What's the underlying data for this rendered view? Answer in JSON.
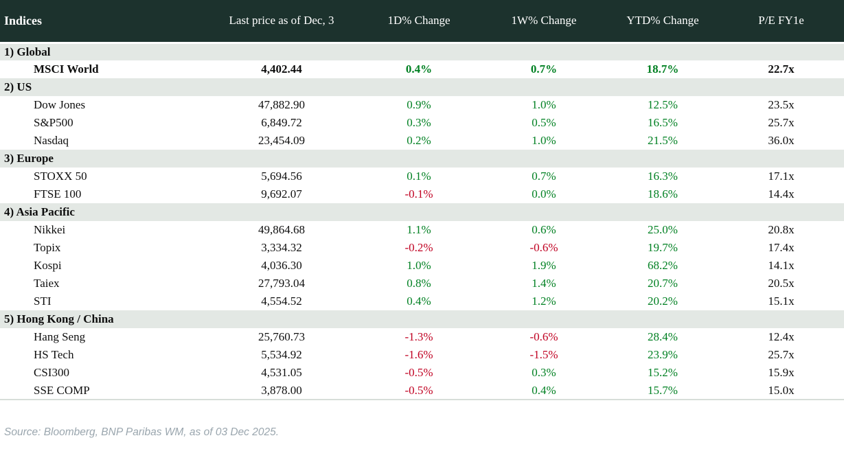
{
  "chart_data": {
    "type": "table",
    "title": "Indices",
    "columns": [
      "Indices",
      "Last price as of Dec, 3",
      "1D% Change",
      "1W% Change",
      "YTD% Change",
      "P/E FY1e"
    ],
    "sections": [
      {
        "label": "1) Global",
        "rows": [
          {
            "name": "MSCI World",
            "last_price": "4,402.44",
            "change_1d": "0.4%",
            "change_1w": "0.7%",
            "change_ytd": "18.7%",
            "pe_fy1e": "22.7x",
            "emphasis": true
          }
        ]
      },
      {
        "label": "2) US",
        "rows": [
          {
            "name": "Dow Jones",
            "last_price": "47,882.90",
            "change_1d": "0.9%",
            "change_1w": "1.0%",
            "change_ytd": "12.5%",
            "pe_fy1e": "23.5x"
          },
          {
            "name": "S&P500",
            "last_price": "6,849.72",
            "change_1d": "0.3%",
            "change_1w": "0.5%",
            "change_ytd": "16.5%",
            "pe_fy1e": "25.7x"
          },
          {
            "name": "Nasdaq",
            "last_price": "23,454.09",
            "change_1d": "0.2%",
            "change_1w": "1.0%",
            "change_ytd": "21.5%",
            "pe_fy1e": "36.0x"
          }
        ]
      },
      {
        "label": "3) Europe",
        "rows": [
          {
            "name": "STOXX 50",
            "last_price": "5,694.56",
            "change_1d": "0.1%",
            "change_1w": "0.7%",
            "change_ytd": "16.3%",
            "pe_fy1e": "17.1x"
          },
          {
            "name": "FTSE 100",
            "last_price": "9,692.07",
            "change_1d": "-0.1%",
            "change_1w": "0.0%",
            "change_ytd": "18.6%",
            "pe_fy1e": "14.4x"
          }
        ]
      },
      {
        "label": "4) Asia Pacific",
        "rows": [
          {
            "name": "Nikkei",
            "last_price": "49,864.68",
            "change_1d": "1.1%",
            "change_1w": "0.6%",
            "change_ytd": "25.0%",
            "pe_fy1e": "20.8x"
          },
          {
            "name": "Topix",
            "last_price": "3,334.32",
            "change_1d": "-0.2%",
            "change_1w": "-0.6%",
            "change_ytd": "19.7%",
            "pe_fy1e": "17.4x"
          },
          {
            "name": "Kospi",
            "last_price": "4,036.30",
            "change_1d": "1.0%",
            "change_1w": "1.9%",
            "change_ytd": "68.2%",
            "pe_fy1e": "14.1x"
          },
          {
            "name": "Taiex",
            "last_price": "27,793.04",
            "change_1d": "0.8%",
            "change_1w": "1.4%",
            "change_ytd": "20.7%",
            "pe_fy1e": "20.5x"
          },
          {
            "name": "STI",
            "last_price": "4,554.52",
            "change_1d": "0.4%",
            "change_1w": "1.2%",
            "change_ytd": "20.2%",
            "pe_fy1e": "15.1x"
          }
        ]
      },
      {
        "label": "5) Hong Kong / China",
        "rows": [
          {
            "name": "Hang Seng",
            "last_price": "25,760.73",
            "change_1d": "-1.3%",
            "change_1w": "-0.6%",
            "change_ytd": "28.4%",
            "pe_fy1e": "12.4x"
          },
          {
            "name": "HS Tech",
            "last_price": "5,534.92",
            "change_1d": "-1.6%",
            "change_1w": "-1.5%",
            "change_ytd": "23.9%",
            "pe_fy1e": "25.7x"
          },
          {
            "name": "CSI300",
            "last_price": "4,531.05",
            "change_1d": "-0.5%",
            "change_1w": "0.3%",
            "change_ytd": "15.2%",
            "pe_fy1e": "15.9x"
          },
          {
            "name": "SSE COMP",
            "last_price": "3,878.00",
            "change_1d": "-0.5%",
            "change_1w": "0.4%",
            "change_ytd": "15.7%",
            "pe_fy1e": "15.0x"
          }
        ]
      }
    ]
  },
  "footer": {
    "source": "Source: Bloomberg, BNP Paribas WM, as of 03 Dec 2025."
  },
  "colors": {
    "header_bg": "#1c322d",
    "header_text": "#ffffff",
    "section_bg": "#e3e8e4",
    "positive": "#008022",
    "negative": "#c00021"
  }
}
